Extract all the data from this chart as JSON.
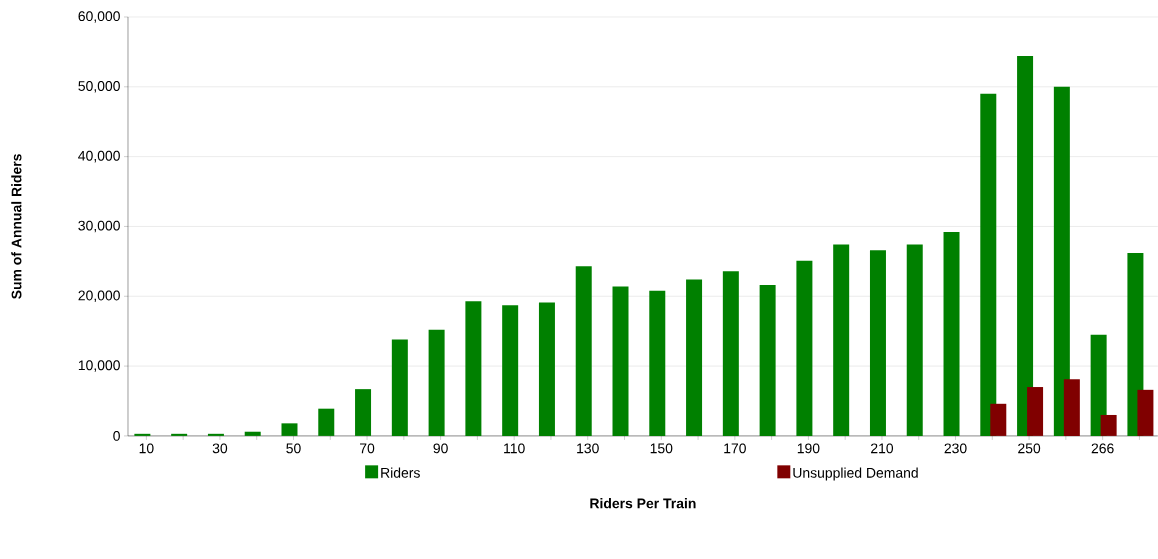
{
  "chart_data": {
    "type": "bar",
    "xlabel": "Riders Per Train",
    "ylabel": "Sum of Annual Riders",
    "categories": [
      "10",
      null,
      "30",
      null,
      "50",
      null,
      "70",
      null,
      "90",
      null,
      "110",
      null,
      "130",
      null,
      "150",
      null,
      "170",
      null,
      "190",
      null,
      "210",
      null,
      "230",
      null,
      "250",
      null,
      "266",
      null
    ],
    "series": [
      {
        "name": "Riders",
        "color": "#008000",
        "values": [
          300,
          300,
          300,
          600,
          1800,
          3900,
          6700,
          13800,
          15200,
          19300,
          18700,
          19100,
          24300,
          21400,
          20800,
          22400,
          23600,
          21600,
          25100,
          27400,
          26600,
          27400,
          29200,
          49000,
          54400,
          50000,
          14500,
          26200
        ]
      },
      {
        "name": "Unsupplied Demand",
        "color": "#800000",
        "values": [
          null,
          null,
          null,
          null,
          null,
          null,
          null,
          null,
          null,
          null,
          null,
          null,
          null,
          null,
          null,
          null,
          null,
          null,
          null,
          null,
          null,
          null,
          null,
          4600,
          7000,
          8100,
          3000,
          6600
        ]
      }
    ],
    "ylim": [
      0,
      60000
    ],
    "yticks": [
      0,
      {
        "value": 10000,
        "label": "10,000"
      },
      {
        "value": 20000,
        "label": "20,000"
      },
      {
        "value": 30000,
        "label": "30,000"
      },
      {
        "value": 40000,
        "label": "40,000"
      },
      {
        "value": 50000,
        "label": "50,000"
      },
      {
        "value": 60000,
        "label": "60,000"
      }
    ],
    "grid": "y",
    "legend": "bottom"
  }
}
